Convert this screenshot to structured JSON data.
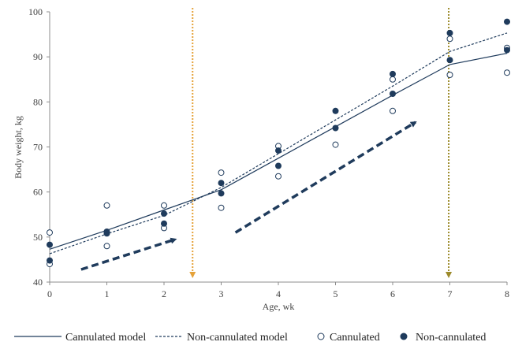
{
  "chart_data": {
    "type": "scatter",
    "xlabel": "Age, wk",
    "ylabel": "Body weight, kg",
    "xlim": [
      0,
      8
    ],
    "ylim": [
      40,
      100
    ],
    "x_ticks": [
      "0",
      "1",
      "2",
      "3",
      "4",
      "5",
      "6",
      "7",
      "8"
    ],
    "y_ticks": [
      "40",
      "50",
      "60",
      "70",
      "80",
      "90",
      "100"
    ],
    "grid": false,
    "legend_position": "bottom",
    "series": [
      {
        "name": "Cannulated model",
        "kind": "line",
        "style": "solid",
        "color": "#1f3b5c",
        "points": [
          [
            0,
            47.3
          ],
          [
            1,
            51.5
          ],
          [
            2,
            56.0
          ],
          [
            3,
            60.5
          ],
          [
            4,
            67.5
          ],
          [
            5,
            74.5
          ],
          [
            6,
            81.5
          ],
          [
            7,
            88.3
          ],
          [
            8,
            90.8
          ]
        ]
      },
      {
        "name": "Non-cannulated model",
        "kind": "line",
        "style": "dashed",
        "color": "#1f3b5c",
        "points": [
          [
            0,
            46.3
          ],
          [
            1,
            50.7
          ],
          [
            2,
            54.8
          ],
          [
            3,
            61.0
          ],
          [
            4,
            68.5
          ],
          [
            5,
            76.0
          ],
          [
            6,
            83.5
          ],
          [
            7,
            91.2
          ],
          [
            8,
            95.3
          ]
        ]
      },
      {
        "name": "Cannulated",
        "kind": "scatter",
        "marker": "open",
        "color": "#1f3b5c",
        "points": [
          [
            0,
            51.0
          ],
          [
            0,
            44.0
          ],
          [
            1,
            57.0
          ],
          [
            1,
            48.0
          ],
          [
            2,
            57.0
          ],
          [
            2,
            52.0
          ],
          [
            3,
            64.3
          ],
          [
            3,
            56.5
          ],
          [
            4,
            70.2
          ],
          [
            4,
            63.5
          ],
          [
            5,
            70.5
          ],
          [
            6,
            85.0
          ],
          [
            6,
            78.0
          ],
          [
            7,
            94.0
          ],
          [
            7,
            86.0
          ],
          [
            8,
            92.0
          ],
          [
            8,
            86.5
          ]
        ]
      },
      {
        "name": "Non-cannulated",
        "kind": "scatter",
        "marker": "filled",
        "color": "#1f3b5c",
        "points": [
          [
            0,
            48.3
          ],
          [
            0,
            44.8
          ],
          [
            1,
            51.2
          ],
          [
            1,
            50.8
          ],
          [
            2,
            55.2
          ],
          [
            2,
            53.0
          ],
          [
            3,
            62.0
          ],
          [
            3,
            59.7
          ],
          [
            4,
            69.2
          ],
          [
            4,
            65.8
          ],
          [
            5,
            78.0
          ],
          [
            5,
            74.2
          ],
          [
            6,
            86.2
          ],
          [
            6,
            81.8
          ],
          [
            7,
            95.3
          ],
          [
            7,
            89.3
          ],
          [
            8,
            97.8
          ],
          [
            8,
            91.5
          ]
        ]
      }
    ],
    "vertical_markers": [
      {
        "x": 2.5,
        "color": "#e5a23a",
        "style": "dotted-arrow-down"
      },
      {
        "x": 6.98,
        "color": "#9c8a2a",
        "style": "dotted-arrow-down"
      }
    ],
    "trend_arrows": [
      {
        "from": [
          0.55,
          42.8
        ],
        "to": [
          2.2,
          49.5
        ],
        "color": "#1f3b5c",
        "style": "dashed"
      },
      {
        "from": [
          3.25,
          51.0
        ],
        "to": [
          6.4,
          75.5
        ],
        "color": "#1f3b5c",
        "style": "dashed"
      }
    ]
  }
}
